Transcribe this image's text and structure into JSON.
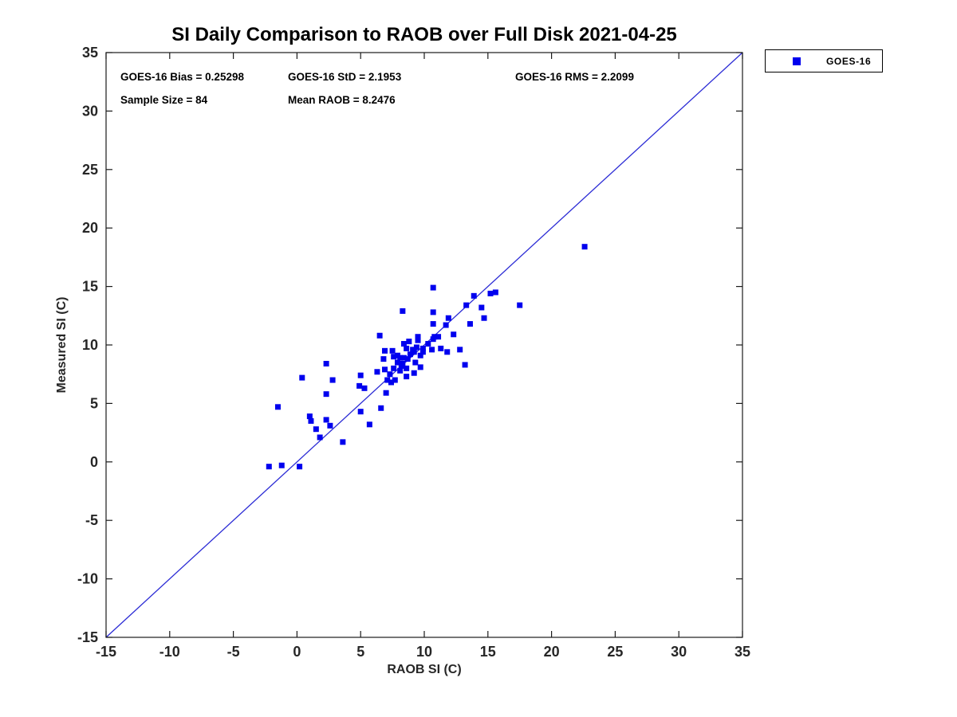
{
  "stats": {
    "bias": "GOES-16 Bias = 0.25298",
    "std": "GOES-16 StD = 2.1953",
    "rms": "GOES-16 RMS = 2.2099",
    "sample_size": "Sample Size = 84",
    "mean_raob": "Mean RAOB = 8.2476"
  },
  "chart_data": {
    "type": "scatter",
    "title": "SI Daily Comparison to RAOB over Full Disk 2021-04-25",
    "xlabel": "RAOB SI (C)",
    "ylabel": "Measured SI (C)",
    "xlim": [
      -15,
      35
    ],
    "ylim": [
      -15,
      35
    ],
    "xticks": [
      -15,
      -10,
      -5,
      0,
      5,
      10,
      15,
      20,
      25,
      30,
      35
    ],
    "yticks": [
      -15,
      -10,
      -5,
      0,
      5,
      10,
      15,
      20,
      25,
      30,
      35
    ],
    "grid": false,
    "box": true,
    "axis_color": "#1a1a1a",
    "tick_label_color": "#262626",
    "legend": {
      "position": "top-right-outside",
      "entries": [
        {
          "label": "GOES-16",
          "marker": "square",
          "color": "#0000ee"
        }
      ]
    },
    "reference_line": {
      "x1": -15,
      "y1": -15,
      "x2": 35,
      "y2": 35,
      "color": "#2b2bd5"
    },
    "series": [
      {
        "name": "GOES-16",
        "marker": "square",
        "color": "#0000ee",
        "points": [
          [
            -2.2,
            -0.4
          ],
          [
            -1.2,
            -0.3
          ],
          [
            0.2,
            -0.4
          ],
          [
            -1.5,
            4.7
          ],
          [
            0.4,
            7.2
          ],
          [
            1.0,
            3.9
          ],
          [
            1.1,
            3.5
          ],
          [
            1.5,
            2.8
          ],
          [
            1.8,
            2.1
          ],
          [
            2.3,
            3.6
          ],
          [
            2.6,
            3.1
          ],
          [
            3.6,
            1.7
          ],
          [
            2.3,
            5.8
          ],
          [
            2.3,
            8.4
          ],
          [
            2.8,
            7.0
          ],
          [
            5.0,
            7.4
          ],
          [
            4.9,
            6.5
          ],
          [
            5.3,
            6.3
          ],
          [
            5.0,
            4.3
          ],
          [
            5.7,
            3.2
          ],
          [
            6.6,
            4.6
          ],
          [
            6.3,
            7.7
          ],
          [
            6.9,
            7.9
          ],
          [
            7.0,
            5.9
          ],
          [
            6.5,
            10.8
          ],
          [
            6.9,
            9.5
          ],
          [
            6.8,
            8.8
          ],
          [
            7.3,
            7.5
          ],
          [
            7.1,
            7.0
          ],
          [
            7.7,
            7.0
          ],
          [
            7.4,
            6.8
          ],
          [
            7.5,
            9.5
          ],
          [
            7.9,
            9.1
          ],
          [
            7.6,
            9.0
          ],
          [
            7.9,
            8.5
          ],
          [
            8.2,
            8.2
          ],
          [
            8.1,
            8.9
          ],
          [
            8.3,
            8.4
          ],
          [
            8.4,
            8.9
          ],
          [
            8.6,
            8.0
          ],
          [
            8.7,
            8.8
          ],
          [
            8.3,
            12.9
          ],
          [
            8.4,
            10.1
          ],
          [
            8.8,
            10.3
          ],
          [
            8.6,
            9.7
          ],
          [
            8.9,
            9.2
          ],
          [
            9.2,
            9.4
          ],
          [
            9.1,
            9.6
          ],
          [
            9.5,
            10.4
          ],
          [
            9.5,
            10.7
          ],
          [
            9.4,
            9.8
          ],
          [
            9.9,
            9.7
          ],
          [
            9.7,
            9.1
          ],
          [
            9.9,
            9.4
          ],
          [
            9.3,
            8.5
          ],
          [
            9.7,
            8.1
          ],
          [
            9.2,
            7.6
          ],
          [
            8.6,
            7.3
          ],
          [
            10.3,
            10.1
          ],
          [
            10.6,
            9.6
          ],
          [
            7.6,
            8.0
          ],
          [
            8.1,
            7.8
          ],
          [
            10.7,
            14.9
          ],
          [
            10.7,
            12.8
          ],
          [
            10.7,
            11.8
          ],
          [
            10.7,
            10.5
          ],
          [
            10.8,
            10.7
          ],
          [
            11.1,
            10.7
          ],
          [
            11.3,
            9.7
          ],
          [
            11.8,
            9.4
          ],
          [
            11.9,
            12.3
          ],
          [
            11.7,
            11.7
          ],
          [
            12.3,
            10.9
          ],
          [
            12.8,
            9.6
          ],
          [
            13.2,
            8.3
          ],
          [
            13.3,
            13.4
          ],
          [
            13.6,
            11.8
          ],
          [
            13.9,
            14.2
          ],
          [
            14.5,
            13.2
          ],
          [
            14.7,
            12.3
          ],
          [
            15.2,
            14.4
          ],
          [
            15.6,
            14.5
          ],
          [
            17.5,
            13.4
          ],
          [
            22.6,
            18.4
          ]
        ]
      }
    ]
  }
}
